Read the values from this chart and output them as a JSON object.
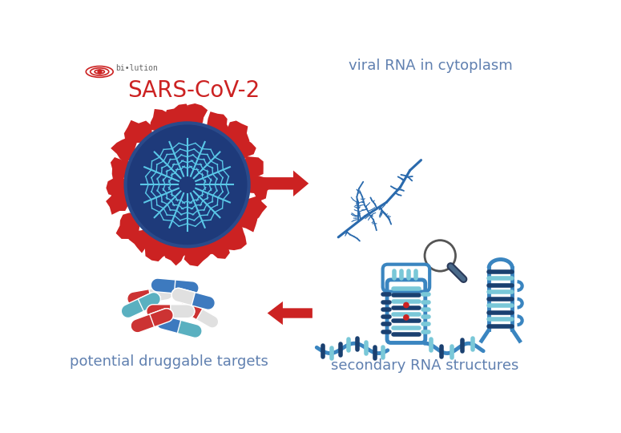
{
  "title": "SARS-CoV-2",
  "label_viral_rna": "viral RNA in cytoplasm",
  "label_secondary": "secondary RNA structures",
  "label_druggable": "potential druggable targets",
  "bg_color": "#ffffff",
  "title_color": "#cc2222",
  "label_color": "#6080b0",
  "arrow_color": "#cc2222",
  "virus_body_color": "#1e3a7a",
  "virus_spike_color": "#cc2222",
  "rna_color": "#2a6aad",
  "stem_color": "#3a7abf",
  "stem_dark": "#1a4a7a",
  "stem_light": "#7abfdf",
  "font_size_title": 20,
  "font_size_label": 13
}
